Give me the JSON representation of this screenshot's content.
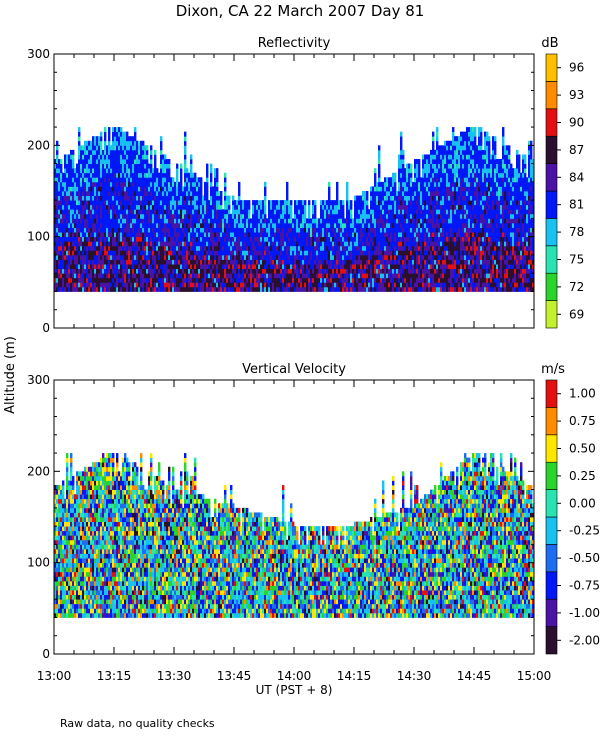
{
  "title": "Dixon, CA 22 March 2007  Day  81",
  "shared_ylabel": "Altitude (m)",
  "footnote": "Raw data, no quality checks",
  "chart_data": [
    {
      "type": "heatmap",
      "title": "Reflectivity",
      "xlabel": "",
      "ylabel": "Altitude (m)",
      "xlim": [
        "13:00",
        "15:00"
      ],
      "ylim": [
        0,
        300
      ],
      "yticks": [
        0,
        100,
        200,
        300
      ],
      "xticks": [
        "13:00",
        "13:15",
        "13:30",
        "13:45",
        "14:00",
        "14:15",
        "14:30",
        "14:45",
        "15:00"
      ],
      "data_floor_altitude_m": 40,
      "colorbar": {
        "unit": "dB",
        "levels": [
          69,
          72,
          75,
          78,
          81,
          84,
          87,
          90,
          93,
          96
        ],
        "colors": [
          "#c4f030",
          "#2ad42a",
          "#29e3b0",
          "#19c1f1",
          "#0018f5",
          "#4a13a6",
          "#2a0f2e",
          "#e21010",
          "#ff8c00",
          "#ffbe00"
        ]
      },
      "top_altitude_profile": [
        {
          "time": "13:00",
          "top_m": 180
        },
        {
          "time": "13:15",
          "top_m": 220
        },
        {
          "time": "13:30",
          "top_m": 180
        },
        {
          "time": "13:45",
          "top_m": 140
        },
        {
          "time": "14:00",
          "top_m": 140
        },
        {
          "time": "14:15",
          "top_m": 140
        },
        {
          "time": "14:30",
          "top_m": 180
        },
        {
          "time": "14:45",
          "top_m": 220
        },
        {
          "time": "15:00",
          "top_m": 180
        }
      ]
    },
    {
      "type": "heatmap",
      "title": "Vertical Velocity",
      "xlabel": "UT  (PST + 8)",
      "ylabel": "Altitude (m)",
      "xlim": [
        "13:00",
        "15:00"
      ],
      "ylim": [
        0,
        300
      ],
      "yticks": [
        0,
        100,
        200,
        300
      ],
      "xticks": [
        "13:00",
        "13:15",
        "13:30",
        "13:45",
        "14:00",
        "14:15",
        "14:30",
        "14:45",
        "15:00"
      ],
      "data_floor_altitude_m": 40,
      "colorbar": {
        "unit": "m/s",
        "levels": [
          "-2.00",
          "-1.00",
          "-0.75",
          "-0.50",
          "-0.25",
          "0.00",
          "0.25",
          "0.50",
          "0.75",
          "1.00"
        ],
        "colors": [
          "#2a0f2e",
          "#4a13a6",
          "#0018f5",
          "#1e6df0",
          "#19c1f1",
          "#29e3b0",
          "#2ad42a",
          "#ffe600",
          "#ff8c00",
          "#e21010"
        ]
      },
      "top_altitude_profile": [
        {
          "time": "13:00",
          "top_m": 180
        },
        {
          "time": "13:15",
          "top_m": 220
        },
        {
          "time": "13:30",
          "top_m": 180
        },
        {
          "time": "13:45",
          "top_m": 160
        },
        {
          "time": "14:00",
          "top_m": 140
        },
        {
          "time": "14:15",
          "top_m": 140
        },
        {
          "time": "14:30",
          "top_m": 160
        },
        {
          "time": "14:45",
          "top_m": 220
        },
        {
          "time": "15:00",
          "top_m": 180
        }
      ]
    }
  ]
}
